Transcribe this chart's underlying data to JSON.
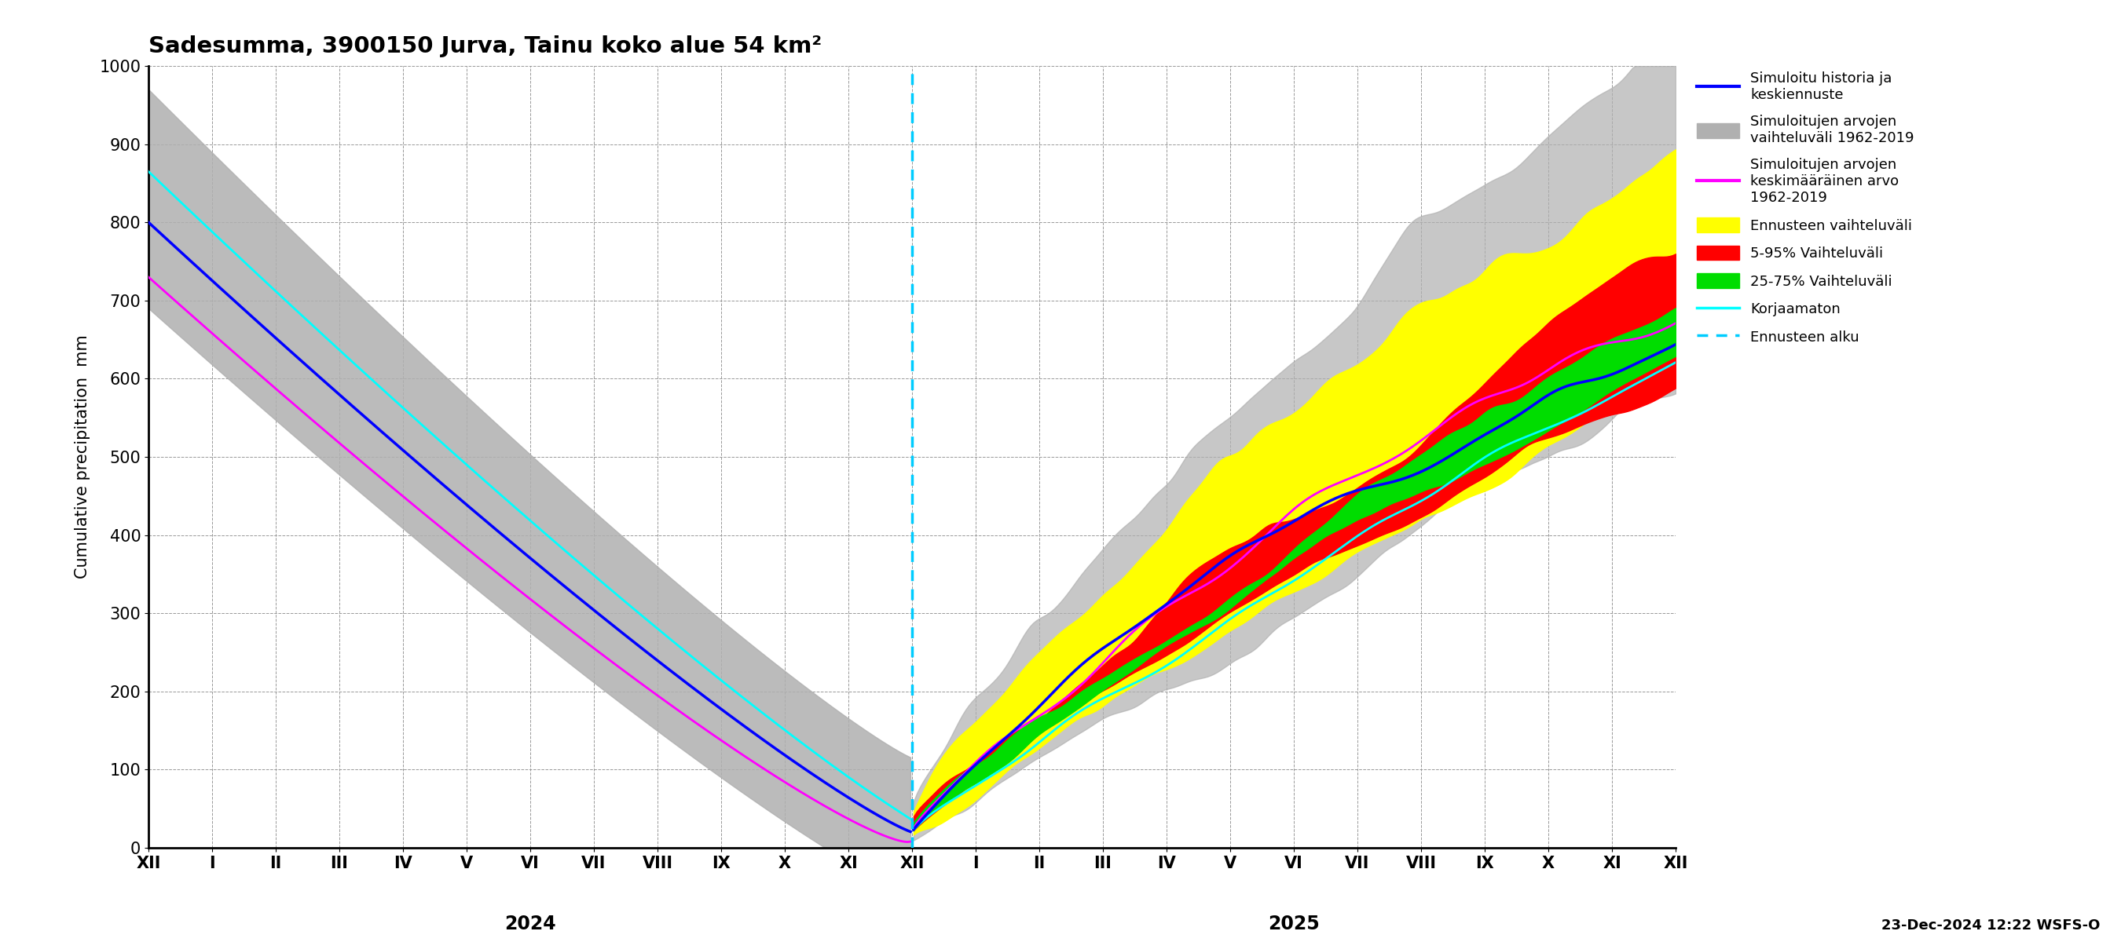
{
  "title": "Sadesumma, 3900150 Jurva, Tainu koko alue 54 km²",
  "ylabel": "Cumulative precipitation  mm",
  "xlabel_bottom": "23-Dec-2024 12:22 WSFS-O",
  "ylim": [
    0,
    1000
  ],
  "background_color": "#ffffff",
  "grid_color": "#999999",
  "tick_labels": [
    "XII",
    "I",
    "II",
    "III",
    "IV",
    "V",
    "VI",
    "VII",
    "VIII",
    "IX",
    "X",
    "XI",
    "XII",
    "I",
    "II",
    "III",
    "IV",
    "V",
    "VI",
    "VII",
    "VIII",
    "IX",
    "X",
    "XI",
    "XII"
  ],
  "year_2024_label": "2024",
  "year_2025_label": "2025",
  "colors": {
    "blue_line": "#0000ff",
    "gray_band": "#b0b0b0",
    "magenta_line": "#ff00ff",
    "yellow_band": "#ffff00",
    "red_band": "#ff0000",
    "green_band": "#00dd00",
    "cyan_line": "#00ffff",
    "cyan_dashed": "#00ccff"
  },
  "legend_labels": [
    "Simuloitu historia ja\nkeskiennuste",
    "Simuloitujen arvojen\nvaihteluväli 1962-2019",
    "Simuloitujen arvojen\nkeskimääräinen arvo\n1962-2019",
    "Ennusteen vaihteluväli",
    "5-95% Vaihteluväli",
    "25-75% Vaihteluväli",
    "Korjaamaton",
    "Ennusteen alku"
  ]
}
